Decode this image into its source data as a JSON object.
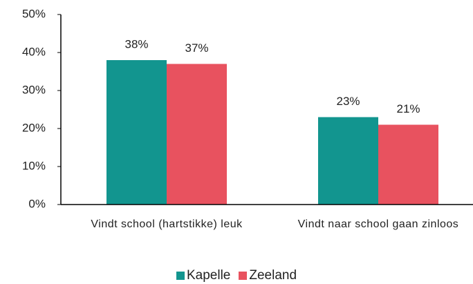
{
  "chart_data": {
    "type": "bar",
    "categories": [
      "Vindt school (hartstikke) leuk",
      "Vindt naar school gaan zinloos"
    ],
    "series": [
      {
        "name": "Kapelle",
        "color": "#12958f",
        "values": [
          38,
          23
        ],
        "value_labels": [
          "38%",
          "23%"
        ]
      },
      {
        "name": "Zeeland",
        "color": "#e8525f",
        "values": [
          37,
          21
        ],
        "value_labels": [
          "37%",
          "21%"
        ]
      }
    ],
    "ylim": [
      0,
      50
    ],
    "yticks": [
      {
        "value": 0,
        "label": "0%"
      },
      {
        "value": 10,
        "label": "10%"
      },
      {
        "value": 20,
        "label": "20%"
      },
      {
        "value": 30,
        "label": "30%"
      },
      {
        "value": 40,
        "label": "40%"
      },
      {
        "value": 50,
        "label": "50%"
      }
    ],
    "legend": "bottom"
  }
}
